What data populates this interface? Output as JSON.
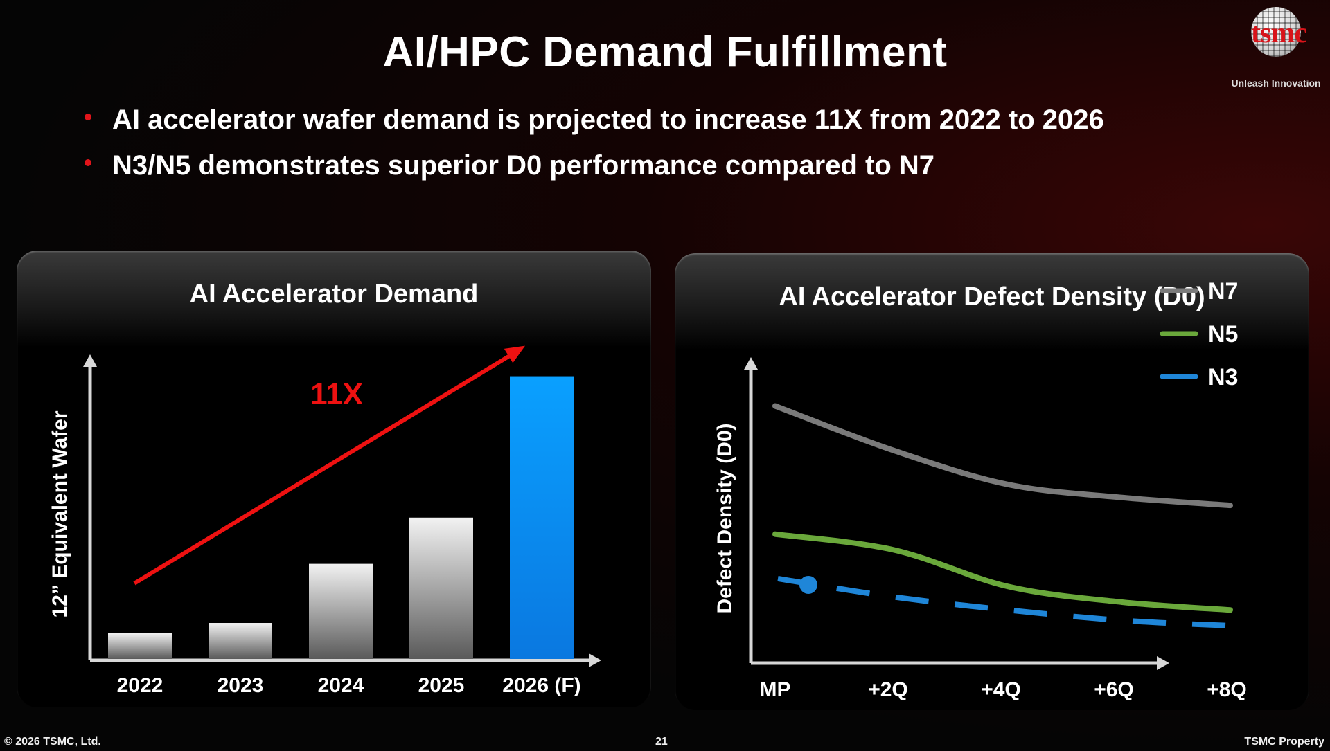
{
  "slide": {
    "title": "AI/HPC Demand Fulfillment",
    "bullets": [
      "AI accelerator wafer demand is projected to increase 11X from 2022 to 2026",
      "N3/N5 demonstrates superior D0 performance compared to N7"
    ],
    "logo": {
      "brand": "tsmc",
      "tagline": "Unleash Innovation"
    },
    "footer": {
      "copyright": "© 2026 TSMC, Ltd.",
      "page": "21",
      "property": "TSMC Property"
    }
  },
  "colors": {
    "accent_red": "#e1141a",
    "bar_gray": "#d9d9d9",
    "bar_blue": "#0a8cf0",
    "n7": "#7a7a7a",
    "n5": "#6aa83b",
    "n3": "#1f86d8"
  },
  "chart_data": [
    {
      "type": "bar",
      "title": "AI Accelerator Demand",
      "xlabel": "",
      "ylabel": "12” Equivalent Wafer",
      "categories": [
        "2022",
        "2023",
        "2024",
        "2025",
        "2026 (F)"
      ],
      "values": [
        1.0,
        1.4,
        3.7,
        5.5,
        11.0
      ],
      "highlight_index": 4,
      "ylim": [
        0,
        11.5
      ],
      "annotation": {
        "text": "11X",
        "arrow": "from 2022 to 2026 (F)"
      },
      "grid": false
    },
    {
      "type": "line",
      "title": "AI Accelerator Defect Density (D0)",
      "xlabel": "",
      "ylabel": "Defect Density (D0)",
      "x": [
        "MP",
        "+2Q",
        "+4Q",
        "+6Q",
        "+8Q"
      ],
      "ylim": [
        0,
        1.0
      ],
      "legend_position": "top-right",
      "series": [
        {
          "name": "N7",
          "values": [
            0.93,
            0.76,
            0.63,
            0.58,
            0.55
          ],
          "style": "solid"
        },
        {
          "name": "N5",
          "values": [
            0.44,
            0.38,
            0.24,
            0.18,
            0.15
          ],
          "style": "solid"
        },
        {
          "name": "N3",
          "values": [
            0.27,
            0.2,
            0.15,
            0.11,
            0.09
          ],
          "style": "dashed"
        }
      ],
      "grid": false
    }
  ]
}
